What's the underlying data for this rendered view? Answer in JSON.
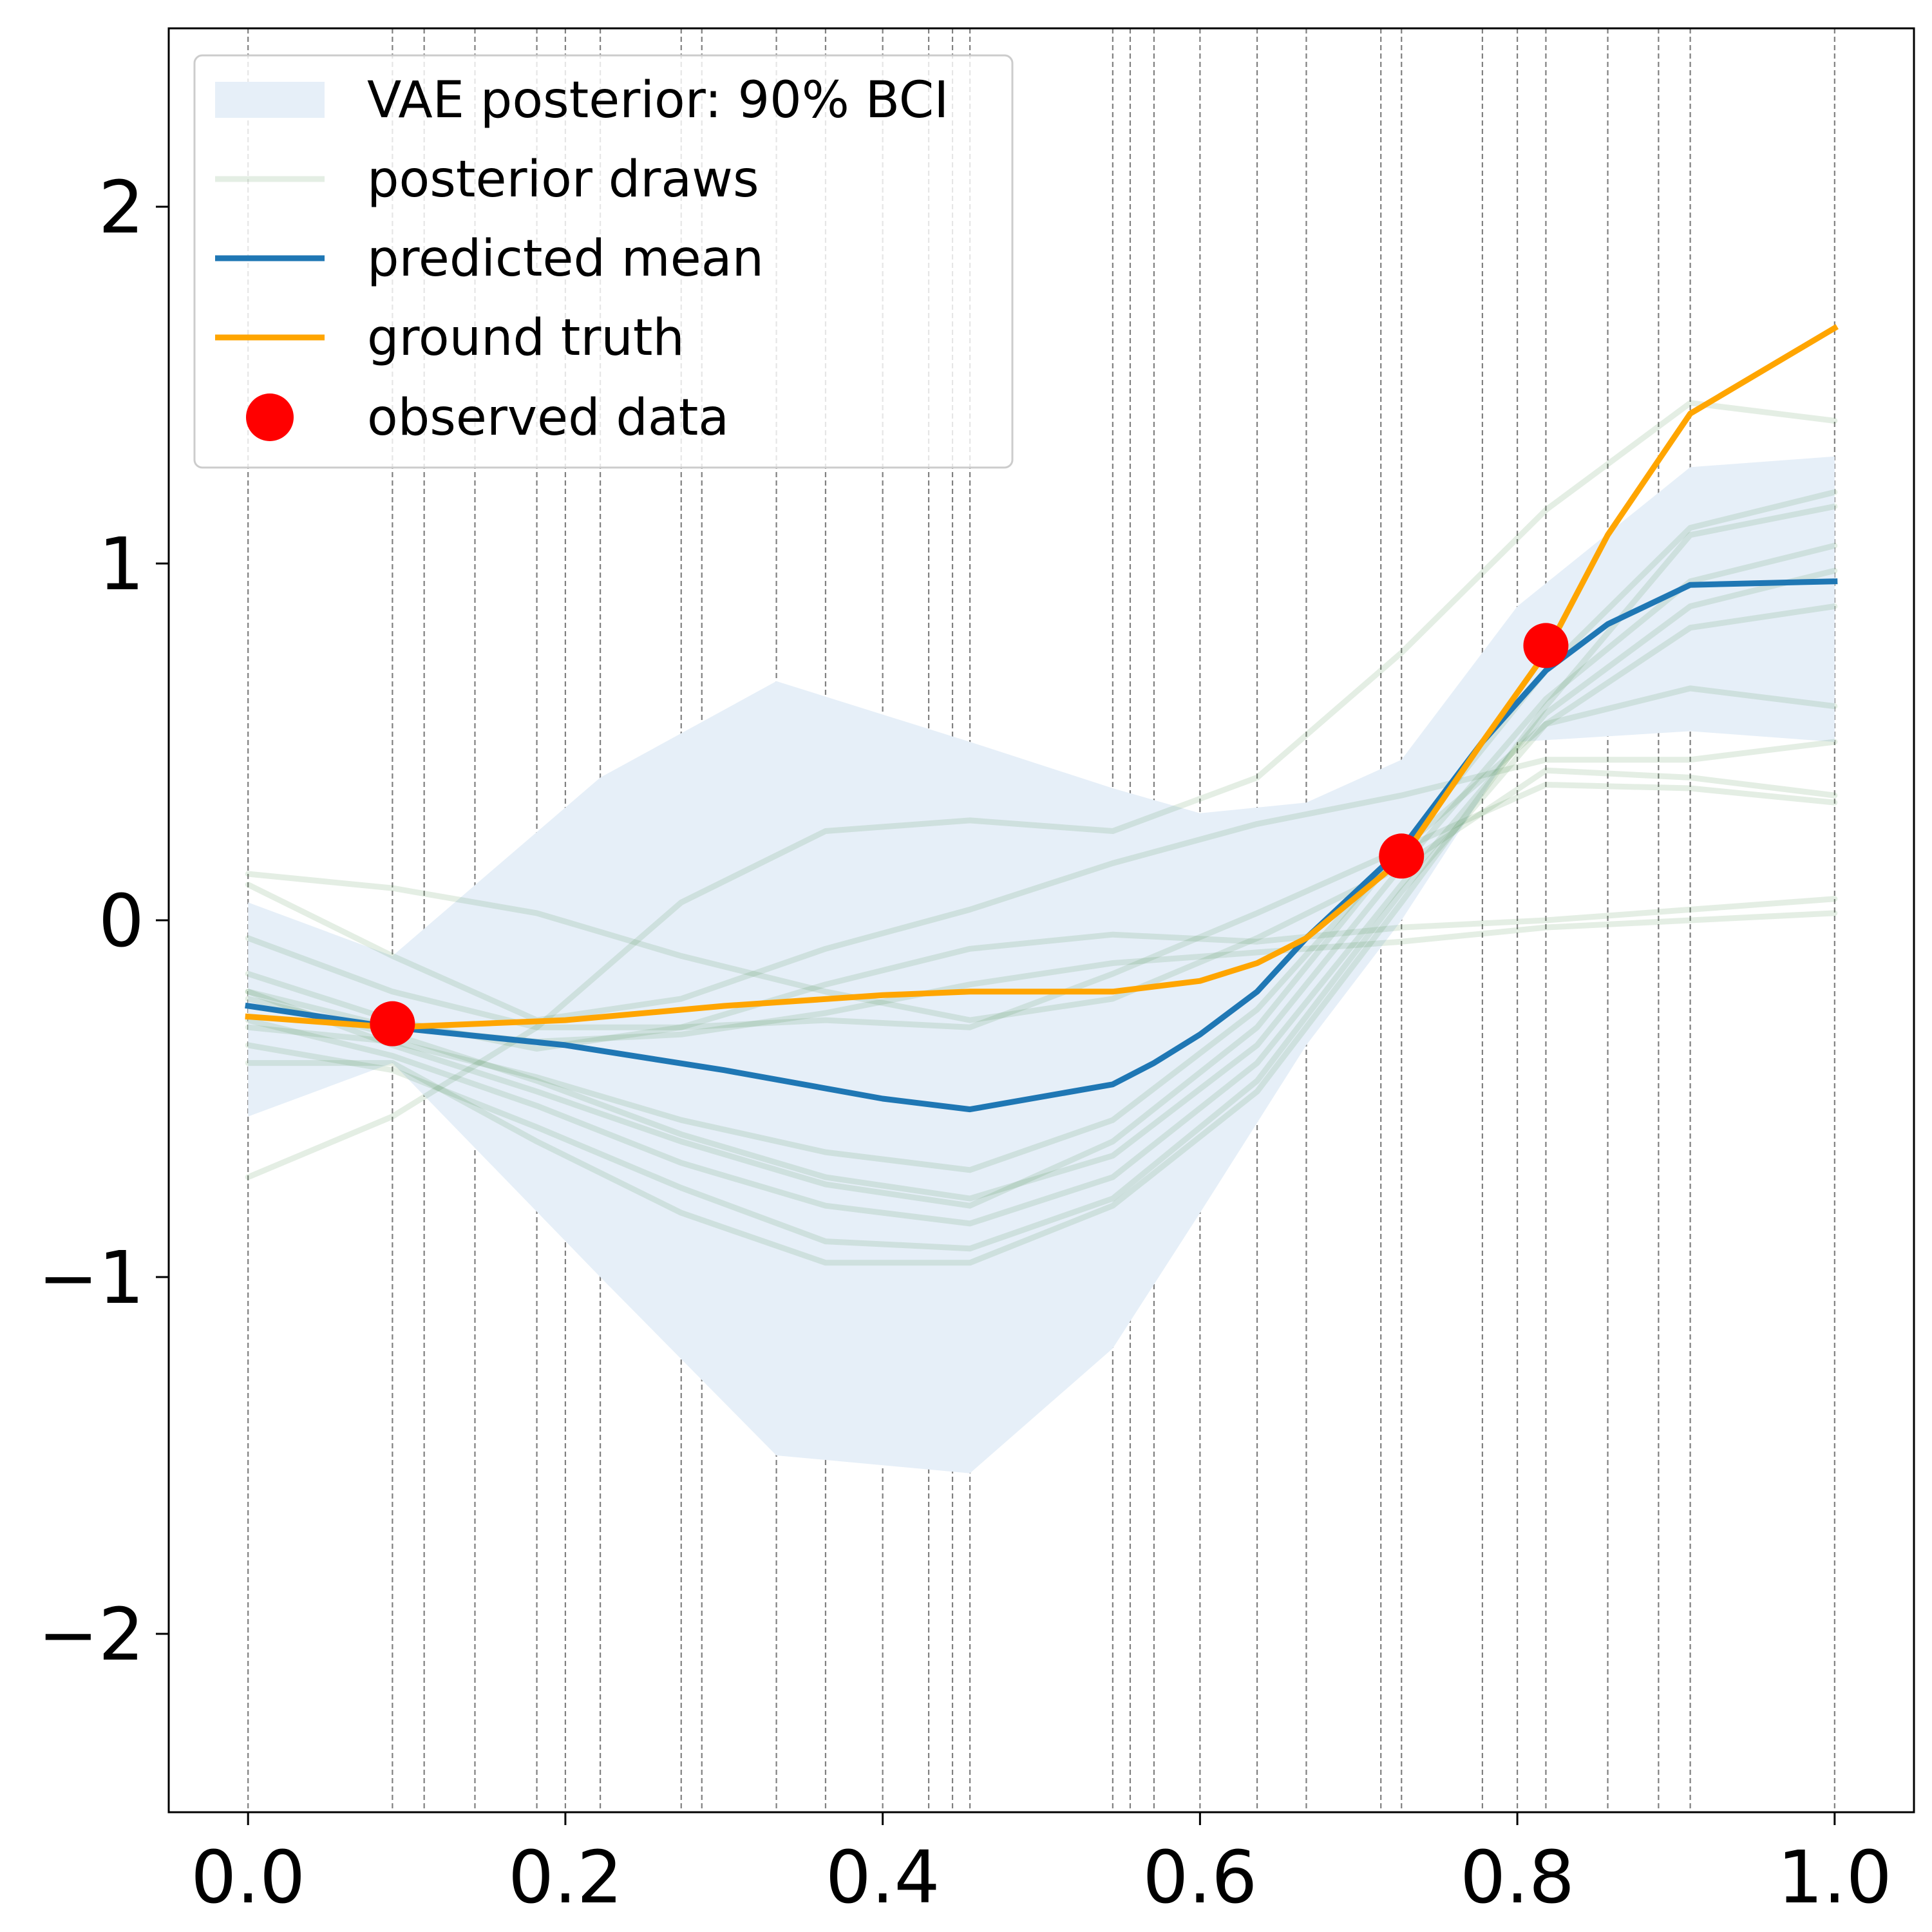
{
  "chart_data": {
    "type": "line",
    "title": "",
    "xlabel": "",
    "ylabel": "",
    "xlim": [
      -0.05,
      1.05
    ],
    "ylim": [
      -2.5,
      2.5
    ],
    "xticks": [
      0.0,
      0.2,
      0.4,
      0.6,
      0.8,
      1.0
    ],
    "xtick_labels": [
      "0.0",
      "0.2",
      "0.4",
      "0.6",
      "0.8",
      "1.0"
    ],
    "yticks": [
      2,
      1,
      0,
      -1,
      -2
    ],
    "ytick_labels": [
      "2",
      "1",
      "0",
      "−1",
      "−2"
    ],
    "grid": "vertical dashed lines at x-sample locations",
    "legend_position": "top-left",
    "vlines_x": [
      0.0,
      0.091,
      0.111,
      0.143,
      0.182,
      0.2,
      0.222,
      0.273,
      0.286,
      0.333,
      0.364,
      0.4,
      0.429,
      0.444,
      0.455,
      0.545,
      0.556,
      0.571,
      0.6,
      0.636,
      0.667,
      0.714,
      0.727,
      0.778,
      0.8,
      0.818,
      0.857,
      0.889,
      0.909,
      1.0
    ],
    "band": {
      "name": "VAE posterior: 90% BCI",
      "color": "#e6eff8",
      "x": [
        0.0,
        0.091,
        0.222,
        0.333,
        0.455,
        0.545,
        0.6,
        0.667,
        0.727,
        0.8,
        0.909,
        1.0
      ],
      "upper": [
        0.05,
        -0.1,
        0.4,
        0.67,
        0.5,
        0.37,
        0.3,
        0.33,
        0.45,
        0.88,
        1.27,
        1.3
      ],
      "lower": [
        -0.55,
        -0.4,
        -1.0,
        -1.5,
        -1.55,
        -1.2,
        -0.82,
        -0.35,
        0.0,
        0.5,
        0.53,
        0.5
      ]
    },
    "series": [
      {
        "name": "predicted mean",
        "color": "#1f77b4",
        "x": [
          0.0,
          0.091,
          0.2,
          0.3,
          0.4,
          0.455,
          0.545,
          0.571,
          0.6,
          0.636,
          0.667,
          0.727,
          0.778,
          0.818,
          0.857,
          0.909,
          1.0
        ],
        "values": [
          -0.24,
          -0.3,
          -0.35,
          -0.42,
          -0.5,
          -0.53,
          -0.46,
          -0.4,
          -0.32,
          -0.2,
          -0.05,
          0.2,
          0.5,
          0.7,
          0.83,
          0.94,
          0.95
        ]
      },
      {
        "name": "ground truth",
        "color": "#ffa500",
        "x": [
          0.0,
          0.091,
          0.2,
          0.3,
          0.4,
          0.455,
          0.545,
          0.6,
          0.636,
          0.667,
          0.727,
          0.778,
          0.818,
          0.857,
          0.909,
          1.0
        ],
        "values": [
          -0.27,
          -0.3,
          -0.28,
          -0.24,
          -0.21,
          -0.2,
          -0.2,
          -0.17,
          -0.12,
          -0.05,
          0.17,
          0.5,
          0.75,
          1.08,
          1.42,
          1.66
        ]
      }
    ],
    "observed_data": {
      "name": "observed data",
      "color": "#ff0000",
      "x": [
        0.091,
        0.727,
        0.818
      ],
      "y": [
        -0.29,
        0.18,
        0.77
      ]
    },
    "posterior_draws": {
      "name": "posterior draws",
      "color": "#2e7d32",
      "x": [
        0.0,
        0.091,
        0.182,
        0.273,
        0.364,
        0.455,
        0.545,
        0.636,
        0.727,
        0.818,
        0.909,
        1.0
      ],
      "draws": [
        [
          -0.22,
          -0.32,
          -0.45,
          -0.6,
          -0.72,
          -0.78,
          -0.66,
          -0.35,
          0.15,
          0.62,
          0.95,
          1.05
        ],
        [
          -0.28,
          -0.38,
          -0.52,
          -0.68,
          -0.8,
          -0.85,
          -0.72,
          -0.4,
          0.1,
          0.58,
          0.88,
          0.98
        ],
        [
          -0.35,
          -0.42,
          -0.58,
          -0.75,
          -0.9,
          -0.92,
          -0.78,
          -0.45,
          0.08,
          0.55,
          0.82,
          0.88
        ],
        [
          -0.4,
          -0.4,
          -0.62,
          -0.82,
          -0.96,
          -0.96,
          -0.8,
          -0.48,
          0.05,
          0.6,
          1.08,
          1.16
        ],
        [
          -0.2,
          -0.35,
          -0.48,
          -0.62,
          -0.74,
          -0.8,
          -0.62,
          -0.3,
          0.2,
          0.7,
          1.1,
          1.2
        ],
        [
          -0.3,
          -0.34,
          -0.44,
          -0.56,
          -0.65,
          -0.7,
          -0.56,
          -0.25,
          0.2,
          0.55,
          0.65,
          0.6
        ],
        [
          0.13,
          0.09,
          0.02,
          -0.1,
          -0.2,
          -0.28,
          -0.22,
          -0.05,
          0.15,
          0.42,
          0.4,
          0.35
        ],
        [
          -0.05,
          -0.2,
          -0.3,
          -0.3,
          -0.28,
          -0.3,
          -0.15,
          0.02,
          0.2,
          0.38,
          0.37,
          0.33
        ],
        [
          0.1,
          -0.1,
          -0.28,
          -0.22,
          -0.08,
          0.03,
          0.16,
          0.27,
          0.35,
          0.45,
          0.45,
          0.5
        ],
        [
          -0.72,
          -0.55,
          -0.3,
          0.05,
          0.25,
          0.28,
          0.25,
          0.4,
          0.75,
          1.15,
          1.45,
          1.4
        ],
        [
          -0.15,
          -0.28,
          -0.36,
          -0.3,
          -0.18,
          -0.08,
          -0.04,
          -0.06,
          -0.02,
          0.0,
          0.03,
          0.06
        ],
        [
          -0.2,
          -0.3,
          -0.34,
          -0.32,
          -0.26,
          -0.18,
          -0.12,
          -0.09,
          -0.06,
          -0.02,
          0.0,
          0.02
        ]
      ]
    },
    "legend": [
      {
        "label": "VAE posterior: 90% BCI",
        "kind": "patch"
      },
      {
        "label": "posterior draws",
        "kind": "line"
      },
      {
        "label": "predicted mean",
        "kind": "line"
      },
      {
        "label": "ground truth",
        "kind": "line"
      },
      {
        "label": "observed data",
        "kind": "marker"
      }
    ]
  }
}
